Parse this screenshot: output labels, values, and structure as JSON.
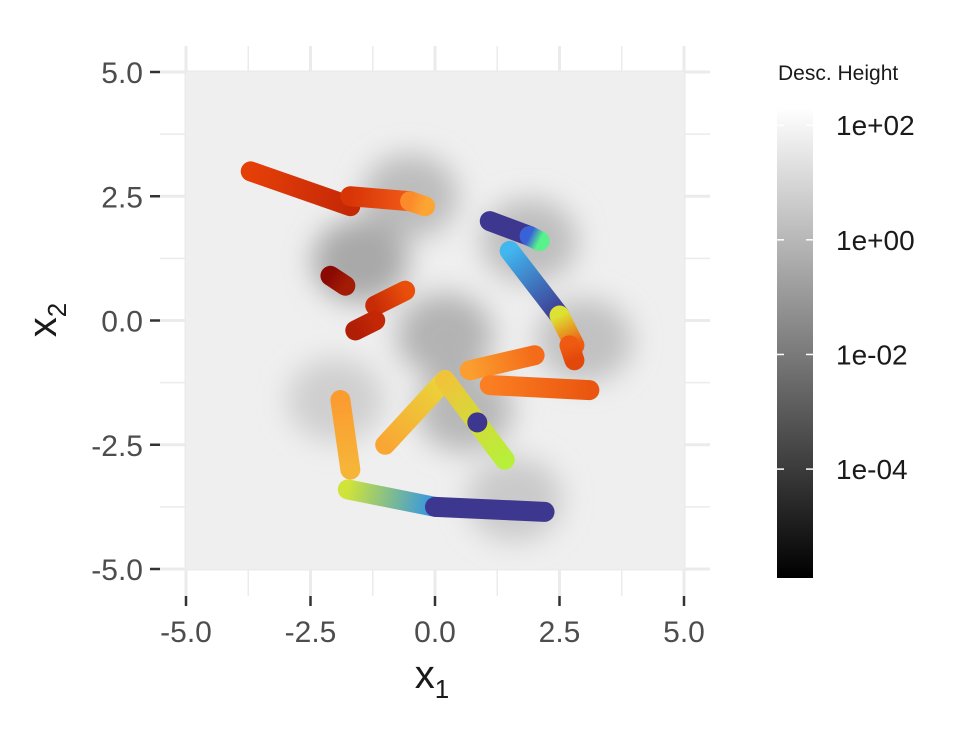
{
  "chart_data": {
    "type": "line",
    "title": "",
    "xlabel": {
      "base": "x",
      "sub": "1"
    },
    "ylabel": {
      "base": "x",
      "sub": "2"
    },
    "xlim": [
      -5,
      5
    ],
    "ylim": [
      -5,
      5
    ],
    "x_ticks": [
      -5.0,
      -2.5,
      0.0,
      2.5,
      5.0
    ],
    "y_ticks": [
      -5.0,
      -2.5,
      0.0,
      2.5,
      5.0
    ],
    "x_tick_labels": [
      "-5.0",
      "-2.5",
      "0.0",
      "2.5",
      "5.0"
    ],
    "y_tick_labels": [
      "-5.0",
      "-2.5",
      "0.0",
      "2.5",
      "5.0"
    ],
    "grid": true,
    "legend": {
      "title": "Desc. Height",
      "position": "right",
      "scale": "log",
      "range_log10": [
        -5.9,
        2.3
      ],
      "tick_log10": [
        2,
        0,
        -2,
        -4
      ],
      "tick_labels": [
        "1e+02",
        "1e+00",
        "1e-02",
        "1e-04"
      ],
      "colors": [
        "#000000",
        "#ffffff"
      ]
    },
    "background": {
      "description_values": "descent height field (grayscale, log scale)",
      "basins": [
        {
          "x": -1.5,
          "y": 1.2,
          "log10": -1.2
        },
        {
          "x": -0.5,
          "y": 2.5,
          "log10": -0.4
        },
        {
          "x": 0.2,
          "y": -0.3,
          "log10": -0.8
        },
        {
          "x": 1.9,
          "y": 1.6,
          "log10": -0.3
        },
        {
          "x": 3.0,
          "y": -0.4,
          "log10": -0.2
        },
        {
          "x": 0.6,
          "y": -1.8,
          "log10": -0.6
        },
        {
          "x": 1.6,
          "y": -3.6,
          "log10": 0.2
        },
        {
          "x": -2.0,
          "y": -1.6,
          "log10": 0.4
        }
      ]
    },
    "paths": [
      {
        "points": [
          [
            -3.7,
            3.0
          ],
          [
            -1.7,
            2.3
          ]
        ],
        "colors": [
          "#e53f08",
          "#c52807"
        ]
      },
      {
        "points": [
          [
            -1.7,
            2.5
          ],
          [
            -0.5,
            2.4
          ]
        ],
        "colors": [
          "#d83506",
          "#f15a18"
        ]
      },
      {
        "points": [
          [
            -0.5,
            2.4
          ],
          [
            -0.2,
            2.3
          ]
        ],
        "colors": [
          "#fb8a2a",
          "#fda533"
        ]
      },
      {
        "points": [
          [
            1.1,
            2.0
          ],
          [
            1.9,
            1.7
          ]
        ],
        "colors": [
          "#3e378f",
          "#3e378f"
        ]
      },
      {
        "points": [
          [
            1.9,
            1.7
          ],
          [
            2.1,
            1.6
          ]
        ],
        "colors": [
          "#3a62d8",
          "#57f28a"
        ]
      },
      {
        "points": [
          [
            1.5,
            1.4
          ],
          [
            2.5,
            0.1
          ]
        ],
        "colors": [
          "#41b6ef",
          "#3e378f"
        ]
      },
      {
        "points": [
          [
            2.5,
            0.1
          ],
          [
            2.8,
            -0.5
          ]
        ],
        "colors": [
          "#dde133",
          "#ee5a12"
        ]
      },
      {
        "points": [
          [
            2.7,
            -0.5
          ],
          [
            2.8,
            -0.8
          ]
        ],
        "colors": [
          "#ee5a12",
          "#e3480b"
        ]
      },
      {
        "points": [
          [
            -2.1,
            0.9
          ],
          [
            -1.8,
            0.7
          ]
        ],
        "colors": [
          "#8a0a03",
          "#a21b04"
        ]
      },
      {
        "points": [
          [
            -0.6,
            0.6
          ],
          [
            -1.2,
            0.3
          ]
        ],
        "colors": [
          "#e94e0b",
          "#c82c06"
        ]
      },
      {
        "points": [
          [
            -1.2,
            0.0
          ],
          [
            -1.6,
            -0.2
          ]
        ],
        "colors": [
          "#c42706",
          "#b01e05"
        ]
      },
      {
        "points": [
          [
            0.7,
            -1.0
          ],
          [
            2.0,
            -0.7
          ]
        ],
        "colors": [
          "#fb9e2f",
          "#f46b19"
        ]
      },
      {
        "points": [
          [
            1.1,
            -1.3
          ],
          [
            3.1,
            -1.4
          ]
        ],
        "colors": [
          "#fb7e22",
          "#ea560f"
        ]
      },
      {
        "points": [
          [
            -1.0,
            -2.5
          ],
          [
            0.2,
            -1.2
          ]
        ],
        "colors": [
          "#f9a734",
          "#e9d63a"
        ]
      },
      {
        "points": [
          [
            0.2,
            -1.2
          ],
          [
            1.4,
            -2.8
          ]
        ],
        "colors": [
          "#f0c43a",
          "#b8ef3a"
        ]
      },
      {
        "points": [
          [
            0.85,
            -2.05
          ],
          [
            0.85,
            -2.05
          ]
        ],
        "colors": [
          "#3e378f",
          "#3e378f"
        ]
      },
      {
        "points": [
          [
            -1.9,
            -1.6
          ],
          [
            -1.7,
            -3.0
          ]
        ],
        "colors": [
          "#fb9c30",
          "#f6b539"
        ]
      },
      {
        "points": [
          [
            -1.75,
            -3.4
          ],
          [
            0.0,
            -3.75
          ]
        ],
        "colors": [
          "#cfe33a",
          "#2e93e9"
        ]
      },
      {
        "points": [
          [
            0.0,
            -3.75
          ],
          [
            2.2,
            -3.85
          ]
        ],
        "colors": [
          "#3e378f",
          "#3e378f"
        ]
      }
    ]
  }
}
